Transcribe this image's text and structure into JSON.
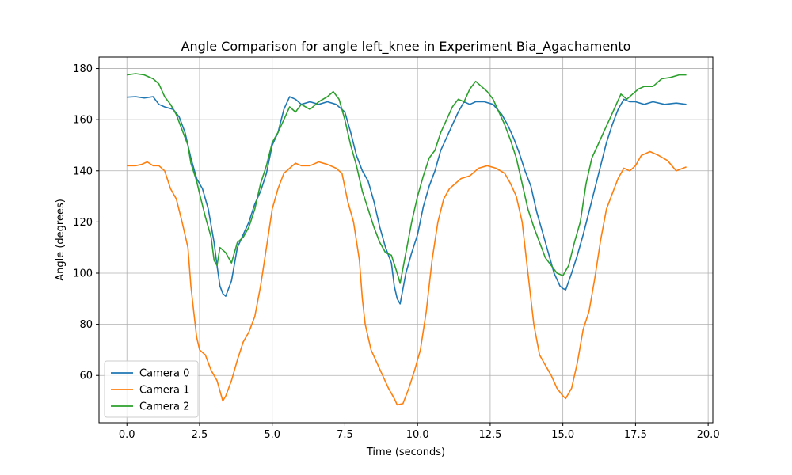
{
  "chart_data": {
    "type": "line",
    "title": "Angle Comparison for angle left_knee in Experiment Bia_Agachamento",
    "xlabel": "Time (seconds)",
    "ylabel": "Angle (degrees)",
    "xlim": [
      -0.96,
      20.16
    ],
    "ylim": [
      41.5,
      184.5
    ],
    "xticks": [
      0.0,
      2.5,
      5.0,
      7.5,
      10.0,
      12.5,
      15.0,
      17.5,
      20.0
    ],
    "xtick_labels": [
      "0.0",
      "2.5",
      "5.0",
      "7.5",
      "10.0",
      "12.5",
      "15.0",
      "17.5",
      "20.0"
    ],
    "yticks": [
      60,
      80,
      100,
      120,
      140,
      160,
      180
    ],
    "ytick_labels": [
      "60",
      "80",
      "100",
      "120",
      "140",
      "160",
      "180"
    ],
    "grid": true,
    "legend_position": "lower-left",
    "series": [
      {
        "name": "Camera 0",
        "color": "#1f77b4",
        "points": [
          [
            0.0,
            168.8
          ],
          [
            0.3,
            169.0
          ],
          [
            0.6,
            168.5
          ],
          [
            0.9,
            169.0
          ],
          [
            1.1,
            166.0
          ],
          [
            1.3,
            165.0
          ],
          [
            1.6,
            164.0
          ],
          [
            1.8,
            161.0
          ],
          [
            2.0,
            155.0
          ],
          [
            2.2,
            145.0
          ],
          [
            2.4,
            137.0
          ],
          [
            2.6,
            133.0
          ],
          [
            2.8,
            125.0
          ],
          [
            3.0,
            112.0
          ],
          [
            3.1,
            103.0
          ],
          [
            3.2,
            95.0
          ],
          [
            3.3,
            92.0
          ],
          [
            3.4,
            91.0
          ],
          [
            3.6,
            97.0
          ],
          [
            3.8,
            110.0
          ],
          [
            4.0,
            115.0
          ],
          [
            4.2,
            120.0
          ],
          [
            4.4,
            127.0
          ],
          [
            4.6,
            132.0
          ],
          [
            4.8,
            139.0
          ],
          [
            5.0,
            150.0
          ],
          [
            5.2,
            155.0
          ],
          [
            5.4,
            164.0
          ],
          [
            5.6,
            169.0
          ],
          [
            5.8,
            168.0
          ],
          [
            6.0,
            166.0
          ],
          [
            6.3,
            167.0
          ],
          [
            6.6,
            166.0
          ],
          [
            6.9,
            167.0
          ],
          [
            7.2,
            166.0
          ],
          [
            7.5,
            163.0
          ],
          [
            7.7,
            155.0
          ],
          [
            7.9,
            146.0
          ],
          [
            8.1,
            140.0
          ],
          [
            8.3,
            136.0
          ],
          [
            8.5,
            128.0
          ],
          [
            8.7,
            118.0
          ],
          [
            8.9,
            110.0
          ],
          [
            9.1,
            104.0
          ],
          [
            9.2,
            95.0
          ],
          [
            9.3,
            90.0
          ],
          [
            9.4,
            88.0
          ],
          [
            9.6,
            100.0
          ],
          [
            9.8,
            108.0
          ],
          [
            10.0,
            115.0
          ],
          [
            10.2,
            126.0
          ],
          [
            10.4,
            134.0
          ],
          [
            10.6,
            140.0
          ],
          [
            10.8,
            148.0
          ],
          [
            11.0,
            153.0
          ],
          [
            11.2,
            158.0
          ],
          [
            11.4,
            163.0
          ],
          [
            11.6,
            167.0
          ],
          [
            11.8,
            166.0
          ],
          [
            12.0,
            167.0
          ],
          [
            12.3,
            167.0
          ],
          [
            12.6,
            166.0
          ],
          [
            12.9,
            162.0
          ],
          [
            13.1,
            158.0
          ],
          [
            13.3,
            153.0
          ],
          [
            13.5,
            147.0
          ],
          [
            13.7,
            140.0
          ],
          [
            13.9,
            134.0
          ],
          [
            14.1,
            124.0
          ],
          [
            14.3,
            116.0
          ],
          [
            14.5,
            108.0
          ],
          [
            14.7,
            100.0
          ],
          [
            14.9,
            95.0
          ],
          [
            15.0,
            94.0
          ],
          [
            15.1,
            93.5
          ],
          [
            15.3,
            100.0
          ],
          [
            15.5,
            107.0
          ],
          [
            15.7,
            115.0
          ],
          [
            15.9,
            124.0
          ],
          [
            16.1,
            133.0
          ],
          [
            16.3,
            142.0
          ],
          [
            16.5,
            151.0
          ],
          [
            16.7,
            158.0
          ],
          [
            16.9,
            164.0
          ],
          [
            17.1,
            168.0
          ],
          [
            17.3,
            167.0
          ],
          [
            17.5,
            167.0
          ],
          [
            17.8,
            166.0
          ],
          [
            18.1,
            167.0
          ],
          [
            18.5,
            166.0
          ],
          [
            18.9,
            166.5
          ],
          [
            19.25,
            166.0
          ]
        ]
      },
      {
        "name": "Camera 1",
        "color": "#ff7f0e",
        "points": [
          [
            0.0,
            142.0
          ],
          [
            0.3,
            142.0
          ],
          [
            0.5,
            142.5
          ],
          [
            0.7,
            143.5
          ],
          [
            0.9,
            142.0
          ],
          [
            1.1,
            142.0
          ],
          [
            1.3,
            140.0
          ],
          [
            1.5,
            133.0
          ],
          [
            1.7,
            129.0
          ],
          [
            1.9,
            120.0
          ],
          [
            2.1,
            110.0
          ],
          [
            2.2,
            95.0
          ],
          [
            2.3,
            85.0
          ],
          [
            2.4,
            75.0
          ],
          [
            2.5,
            70.0
          ],
          [
            2.7,
            68.0
          ],
          [
            2.9,
            62.0
          ],
          [
            3.1,
            58.0
          ],
          [
            3.3,
            50.0
          ],
          [
            3.4,
            52.0
          ],
          [
            3.6,
            58.0
          ],
          [
            3.8,
            66.0
          ],
          [
            4.0,
            73.0
          ],
          [
            4.2,
            77.0
          ],
          [
            4.4,
            83.0
          ],
          [
            4.6,
            95.0
          ],
          [
            4.8,
            110.0
          ],
          [
            5.0,
            125.0
          ],
          [
            5.2,
            133.0
          ],
          [
            5.4,
            139.0
          ],
          [
            5.6,
            141.0
          ],
          [
            5.8,
            143.0
          ],
          [
            6.0,
            142.0
          ],
          [
            6.3,
            142.0
          ],
          [
            6.6,
            143.5
          ],
          [
            6.9,
            142.5
          ],
          [
            7.2,
            141.0
          ],
          [
            7.4,
            139.0
          ],
          [
            7.6,
            128.0
          ],
          [
            7.8,
            120.0
          ],
          [
            8.0,
            105.0
          ],
          [
            8.1,
            90.0
          ],
          [
            8.2,
            80.0
          ],
          [
            8.4,
            70.0
          ],
          [
            8.6,
            65.0
          ],
          [
            8.8,
            60.0
          ],
          [
            9.0,
            55.0
          ],
          [
            9.2,
            51.0
          ],
          [
            9.3,
            48.5
          ],
          [
            9.5,
            49.0
          ],
          [
            9.7,
            55.0
          ],
          [
            9.9,
            62.0
          ],
          [
            10.1,
            70.0
          ],
          [
            10.3,
            85.0
          ],
          [
            10.5,
            105.0
          ],
          [
            10.7,
            120.0
          ],
          [
            10.9,
            129.0
          ],
          [
            11.1,
            133.0
          ],
          [
            11.3,
            135.0
          ],
          [
            11.5,
            137.0
          ],
          [
            11.8,
            138.0
          ],
          [
            12.1,
            141.0
          ],
          [
            12.4,
            142.0
          ],
          [
            12.7,
            141.0
          ],
          [
            13.0,
            139.0
          ],
          [
            13.2,
            135.0
          ],
          [
            13.4,
            130.0
          ],
          [
            13.6,
            120.0
          ],
          [
            13.8,
            100.0
          ],
          [
            14.0,
            80.0
          ],
          [
            14.2,
            68.0
          ],
          [
            14.4,
            64.0
          ],
          [
            14.6,
            60.0
          ],
          [
            14.8,
            55.0
          ],
          [
            15.0,
            52.0
          ],
          [
            15.1,
            51.0
          ],
          [
            15.3,
            55.0
          ],
          [
            15.5,
            65.0
          ],
          [
            15.7,
            78.0
          ],
          [
            15.9,
            85.0
          ],
          [
            16.1,
            98.0
          ],
          [
            16.3,
            113.0
          ],
          [
            16.5,
            125.0
          ],
          [
            16.7,
            131.0
          ],
          [
            16.9,
            137.0
          ],
          [
            17.1,
            141.0
          ],
          [
            17.3,
            140.0
          ],
          [
            17.5,
            142.0
          ],
          [
            17.7,
            146.0
          ],
          [
            18.0,
            147.5
          ],
          [
            18.3,
            146.0
          ],
          [
            18.6,
            144.0
          ],
          [
            18.9,
            140.0
          ],
          [
            19.25,
            141.5
          ]
        ]
      },
      {
        "name": "Camera 2",
        "color": "#2ca02c",
        "points": [
          [
            0.0,
            177.5
          ],
          [
            0.3,
            178.0
          ],
          [
            0.6,
            177.5
          ],
          [
            0.9,
            176.0
          ],
          [
            1.1,
            174.0
          ],
          [
            1.3,
            169.0
          ],
          [
            1.5,
            166.0
          ],
          [
            1.7,
            162.0
          ],
          [
            1.9,
            156.0
          ],
          [
            2.1,
            150.0
          ],
          [
            2.2,
            143.0
          ],
          [
            2.4,
            136.0
          ],
          [
            2.5,
            131.0
          ],
          [
            2.7,
            122.0
          ],
          [
            2.9,
            114.0
          ],
          [
            3.0,
            105.0
          ],
          [
            3.1,
            103.0
          ],
          [
            3.2,
            110.0
          ],
          [
            3.4,
            108.0
          ],
          [
            3.6,
            104.0
          ],
          [
            3.8,
            112.0
          ],
          [
            4.0,
            114.0
          ],
          [
            4.2,
            118.0
          ],
          [
            4.4,
            125.0
          ],
          [
            4.6,
            135.0
          ],
          [
            4.8,
            142.0
          ],
          [
            5.0,
            151.0
          ],
          [
            5.2,
            155.0
          ],
          [
            5.4,
            160.0
          ],
          [
            5.6,
            165.0
          ],
          [
            5.8,
            163.0
          ],
          [
            6.0,
            166.0
          ],
          [
            6.3,
            164.0
          ],
          [
            6.6,
            167.0
          ],
          [
            6.9,
            169.0
          ],
          [
            7.1,
            171.0
          ],
          [
            7.3,
            168.0
          ],
          [
            7.5,
            160.0
          ],
          [
            7.7,
            150.0
          ],
          [
            7.9,
            142.0
          ],
          [
            8.1,
            132.0
          ],
          [
            8.3,
            125.0
          ],
          [
            8.5,
            118.0
          ],
          [
            8.7,
            112.0
          ],
          [
            8.9,
            108.0
          ],
          [
            9.1,
            107.0
          ],
          [
            9.3,
            100.0
          ],
          [
            9.4,
            96.0
          ],
          [
            9.6,
            108.0
          ],
          [
            9.8,
            120.0
          ],
          [
            10.0,
            130.0
          ],
          [
            10.2,
            138.0
          ],
          [
            10.4,
            145.0
          ],
          [
            10.6,
            148.0
          ],
          [
            10.8,
            155.0
          ],
          [
            11.0,
            160.0
          ],
          [
            11.2,
            165.0
          ],
          [
            11.4,
            168.0
          ],
          [
            11.6,
            167.0
          ],
          [
            11.8,
            172.0
          ],
          [
            12.0,
            175.0
          ],
          [
            12.2,
            173.0
          ],
          [
            12.4,
            171.0
          ],
          [
            12.6,
            168.0
          ],
          [
            12.8,
            163.0
          ],
          [
            13.0,
            158.0
          ],
          [
            13.2,
            152.0
          ],
          [
            13.4,
            145.0
          ],
          [
            13.6,
            135.0
          ],
          [
            13.8,
            125.0
          ],
          [
            14.0,
            118.0
          ],
          [
            14.2,
            112.0
          ],
          [
            14.4,
            106.0
          ],
          [
            14.6,
            103.0
          ],
          [
            14.8,
            100.0
          ],
          [
            15.0,
            99.0
          ],
          [
            15.2,
            103.0
          ],
          [
            15.4,
            112.0
          ],
          [
            15.6,
            120.0
          ],
          [
            15.8,
            135.0
          ],
          [
            16.0,
            145.0
          ],
          [
            16.2,
            150.0
          ],
          [
            16.4,
            155.0
          ],
          [
            16.6,
            160.0
          ],
          [
            16.8,
            165.0
          ],
          [
            17.0,
            170.0
          ],
          [
            17.2,
            168.0
          ],
          [
            17.4,
            170.0
          ],
          [
            17.6,
            172.0
          ],
          [
            17.8,
            173.0
          ],
          [
            18.1,
            173.0
          ],
          [
            18.4,
            176.0
          ],
          [
            18.7,
            176.5
          ],
          [
            19.0,
            177.5
          ],
          [
            19.25,
            177.5
          ]
        ]
      }
    ]
  }
}
